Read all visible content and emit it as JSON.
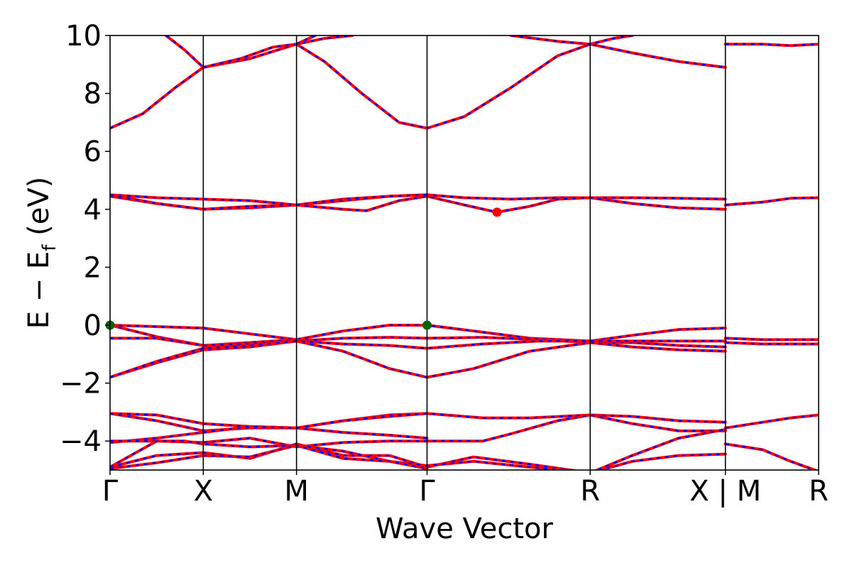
{
  "chart_data": {
    "type": "line",
    "xlabel": "Wave Vector",
    "ylabel_main": "E − E",
    "ylabel_sub": "f",
    "ylabel_unit": " (eV)",
    "ylim": [
      -5,
      10
    ],
    "yticks": [
      -4,
      -2,
      0,
      2,
      4,
      6,
      8,
      10
    ],
    "ytick_labels": [
      "−4",
      "−2",
      "0",
      "2",
      "4",
      "6",
      "8",
      "10"
    ],
    "xlim": [
      0,
      7.6
    ],
    "high_symmetry_points": [
      {
        "label": "Γ",
        "x": 0
      },
      {
        "label": "X",
        "x": 1
      },
      {
        "label": "M",
        "x": 2
      },
      {
        "label": "Γ",
        "x": 3.4
      },
      {
        "label": "R",
        "x": 5.15
      },
      {
        "label": "X | M",
        "x": 6.6
      },
      {
        "label": "R",
        "x": 7.6
      }
    ],
    "grid": false,
    "legend": "none",
    "colors": {
      "band_solid": "#ff0000",
      "band_dash": "#0000ff",
      "cbm_marker": "#ff0000",
      "vbm_marker": "#006400",
      "axes": "#000000"
    },
    "series": [
      {
        "values": [
          [
            0,
            6.8
          ],
          [
            0.35,
            7.3
          ],
          [
            0.7,
            8.2
          ],
          [
            1,
            8.9
          ],
          [
            1.5,
            9.2
          ],
          [
            2,
            9.7
          ],
          [
            2.3,
            9.1
          ],
          [
            2.7,
            8.0
          ],
          [
            3.1,
            7.0
          ],
          [
            3.4,
            6.8
          ],
          [
            3.8,
            7.2
          ],
          [
            4.3,
            8.2
          ],
          [
            4.8,
            9.3
          ],
          [
            5.15,
            9.7
          ],
          [
            5.6,
            9.4
          ],
          [
            6.1,
            9.1
          ],
          [
            6.6,
            8.9
          ]
        ]
      },
      {
        "values": [
          [
            0.6,
            10
          ],
          [
            0.8,
            9.5
          ],
          [
            1,
            8.9
          ]
        ]
      },
      {
        "values": [
          [
            1,
            8.9
          ],
          [
            1.4,
            9.2
          ],
          [
            1.75,
            9.6
          ],
          [
            2,
            9.7
          ],
          [
            2.3,
            9.9
          ],
          [
            2.6,
            10
          ]
        ]
      },
      {
        "values": [
          [
            2,
            9.7
          ],
          [
            2.2,
            10
          ]
        ]
      },
      {
        "values": [
          [
            4.3,
            10
          ],
          [
            4.8,
            9.8
          ],
          [
            5.15,
            9.7
          ],
          [
            5.4,
            9.9
          ],
          [
            5.6,
            10
          ]
        ]
      },
      {
        "values": [
          [
            6.6,
            9.7
          ],
          [
            7.0,
            9.7
          ],
          [
            7.3,
            9.65
          ],
          [
            7.6,
            9.7
          ]
        ]
      },
      {
        "values": [
          [
            0,
            4.5
          ],
          [
            0.5,
            4.4
          ],
          [
            1,
            4.35
          ],
          [
            1.5,
            4.3
          ],
          [
            2,
            4.15
          ],
          [
            2.5,
            4.3
          ],
          [
            3,
            4.45
          ],
          [
            3.4,
            4.5
          ],
          [
            3.8,
            4.4
          ],
          [
            4.3,
            4.35
          ],
          [
            4.8,
            4.4
          ],
          [
            5.15,
            4.4
          ],
          [
            5.6,
            4.4
          ],
          [
            6.1,
            4.38
          ],
          [
            6.6,
            4.35
          ]
        ]
      },
      {
        "values": [
          [
            0,
            4.45
          ],
          [
            0.5,
            4.2
          ],
          [
            1,
            4.0
          ],
          [
            1.5,
            4.05
          ],
          [
            2,
            4.15
          ],
          [
            2.5,
            4.0
          ],
          [
            2.75,
            3.95
          ],
          [
            3.1,
            4.3
          ],
          [
            3.4,
            4.45
          ],
          [
            3.8,
            4.15
          ],
          [
            4.15,
            3.9
          ],
          [
            4.5,
            4.1
          ],
          [
            4.8,
            4.35
          ],
          [
            5.15,
            4.4
          ],
          [
            5.6,
            4.2
          ],
          [
            6.1,
            4.05
          ],
          [
            6.6,
            4.0
          ]
        ]
      },
      {
        "values": [
          [
            0,
            4.5
          ],
          [
            0.5,
            4.2
          ],
          [
            1,
            4.0
          ],
          [
            1.5,
            4.1
          ],
          [
            2,
            4.15
          ],
          [
            2.5,
            4.35
          ],
          [
            3,
            4.45
          ],
          [
            3.4,
            4.5
          ]
        ]
      },
      {
        "values": [
          [
            6.6,
            4.15
          ],
          [
            7.0,
            4.25
          ],
          [
            7.3,
            4.38
          ],
          [
            7.6,
            4.4
          ]
        ]
      },
      {
        "values": [
          [
            0,
            0
          ],
          [
            0.5,
            -0.05
          ],
          [
            1,
            -0.1
          ],
          [
            1.5,
            -0.3
          ],
          [
            2,
            -0.5
          ],
          [
            2.5,
            -0.2
          ],
          [
            3,
            0.0
          ],
          [
            3.4,
            0
          ],
          [
            3.9,
            -0.2
          ],
          [
            4.5,
            -0.45
          ],
          [
            5.15,
            -0.55
          ],
          [
            5.6,
            -0.35
          ],
          [
            6.1,
            -0.15
          ],
          [
            6.6,
            -0.1
          ]
        ]
      },
      {
        "values": [
          [
            0,
            0
          ],
          [
            0.5,
            -0.4
          ],
          [
            1,
            -0.7
          ],
          [
            1.5,
            -0.6
          ],
          [
            2,
            -0.5
          ]
        ]
      },
      {
        "values": [
          [
            0,
            -0.45
          ],
          [
            0.5,
            -0.45
          ],
          [
            1,
            -0.7
          ],
          [
            1.5,
            -0.65
          ],
          [
            2,
            -0.55
          ],
          [
            2.5,
            -0.45
          ],
          [
            3,
            -0.42
          ],
          [
            3.4,
            -0.45
          ],
          [
            4,
            -0.42
          ],
          [
            4.6,
            -0.5
          ],
          [
            5.15,
            -0.6
          ],
          [
            5.6,
            -0.6
          ],
          [
            6.1,
            -0.7
          ],
          [
            6.6,
            -0.75
          ]
        ]
      },
      {
        "values": [
          [
            0,
            -1.8
          ],
          [
            0.5,
            -1.3
          ],
          [
            1,
            -0.85
          ],
          [
            1.5,
            -0.75
          ],
          [
            2,
            -0.55
          ],
          [
            2.5,
            -0.9
          ],
          [
            3,
            -1.5
          ],
          [
            3.4,
            -1.8
          ],
          [
            3.9,
            -1.5
          ],
          [
            4.5,
            -0.9
          ],
          [
            5.15,
            -0.6
          ],
          [
            5.6,
            -0.75
          ],
          [
            6.1,
            -0.85
          ],
          [
            6.6,
            -0.9
          ]
        ]
      },
      {
        "values": [
          [
            0,
            -1.8
          ],
          [
            0.5,
            -1.25
          ],
          [
            1,
            -0.8
          ],
          [
            1.5,
            -0.7
          ],
          [
            2,
            -0.55
          ],
          [
            2.5,
            -0.65
          ],
          [
            3,
            -0.7
          ],
          [
            3.4,
            -0.8
          ],
          [
            4,
            -0.65
          ],
          [
            4.6,
            -0.55
          ],
          [
            5.15,
            -0.55
          ],
          [
            6.6,
            -0.55
          ]
        ]
      },
      {
        "values": [
          [
            6.6,
            -0.45
          ],
          [
            7.0,
            -0.5
          ],
          [
            7.6,
            -0.5
          ]
        ]
      },
      {
        "values": [
          [
            6.6,
            -0.6
          ],
          [
            7.0,
            -0.65
          ],
          [
            7.6,
            -0.65
          ]
        ]
      },
      {
        "values": [
          [
            0,
            -3.05
          ],
          [
            0.5,
            -3.1
          ],
          [
            1,
            -3.4
          ],
          [
            1.5,
            -3.5
          ],
          [
            2,
            -3.55
          ],
          [
            2.5,
            -3.3
          ],
          [
            3,
            -3.1
          ],
          [
            3.4,
            -3.05
          ],
          [
            4,
            -3.2
          ],
          [
            4.5,
            -3.2
          ],
          [
            5.15,
            -3.1
          ],
          [
            5.6,
            -3.15
          ],
          [
            6.1,
            -3.3
          ],
          [
            6.6,
            -3.35
          ]
        ]
      },
      {
        "values": [
          [
            0,
            -3.05
          ],
          [
            0.5,
            -3.3
          ],
          [
            1,
            -3.65
          ],
          [
            1.5,
            -3.55
          ],
          [
            2,
            -3.55
          ],
          [
            2.5,
            -3.7
          ],
          [
            3,
            -3.8
          ],
          [
            3.4,
            -3.9
          ]
        ]
      },
      {
        "values": [
          [
            0,
            -4.05
          ],
          [
            0.5,
            -3.9
          ],
          [
            1,
            -3.7
          ],
          [
            1.5,
            -3.5
          ],
          [
            2,
            -3.55
          ],
          [
            2.5,
            -3.3
          ],
          [
            3,
            -3.15
          ],
          [
            3.4,
            -3.05
          ]
        ]
      },
      {
        "values": [
          [
            0,
            -4.0
          ],
          [
            0.5,
            -4.0
          ],
          [
            1,
            -4.05
          ],
          [
            1.5,
            -3.9
          ],
          [
            2,
            -4.2
          ],
          [
            2.5,
            -4.05
          ],
          [
            3,
            -4.0
          ],
          [
            3.4,
            -4.0
          ],
          [
            4,
            -4.0
          ],
          [
            4.3,
            -3.75
          ],
          [
            4.8,
            -3.3
          ],
          [
            5.15,
            -3.1
          ],
          [
            5.6,
            -3.4
          ],
          [
            6.1,
            -3.65
          ],
          [
            6.6,
            -3.65
          ]
        ]
      },
      {
        "values": [
          [
            0,
            -4.9
          ],
          [
            0.5,
            -4.5
          ],
          [
            1,
            -4.4
          ],
          [
            1.5,
            -4.6
          ],
          [
            2,
            -4.1
          ],
          [
            2.5,
            -4.5
          ],
          [
            3,
            -4.5
          ],
          [
            3.4,
            -4.9
          ],
          [
            3.9,
            -4.55
          ],
          [
            4.5,
            -4.8
          ],
          [
            5.15,
            -5.1
          ]
        ]
      },
      {
        "values": [
          [
            0,
            -4.9
          ],
          [
            0.5,
            -4.0
          ],
          [
            0.8,
            -4.0
          ],
          [
            1,
            -4.1
          ],
          [
            1.5,
            -4.2
          ],
          [
            2,
            -4.15
          ],
          [
            2.5,
            -4.35
          ],
          [
            3,
            -4.7
          ],
          [
            3.4,
            -4.85
          ],
          [
            3.9,
            -4.7
          ],
          [
            4.5,
            -4.9
          ],
          [
            5.15,
            -5.1
          ]
        ]
      },
      {
        "values": [
          [
            0,
            -4.95
          ],
          [
            0.5,
            -4.75
          ],
          [
            1,
            -4.5
          ],
          [
            1.5,
            -4.55
          ],
          [
            2,
            -4.15
          ],
          [
            2.5,
            -4.6
          ],
          [
            3,
            -4.7
          ],
          [
            3.4,
            -4.95
          ]
        ]
      },
      {
        "values": [
          [
            5.15,
            -5.1
          ],
          [
            5.6,
            -4.7
          ],
          [
            6.1,
            -4.5
          ],
          [
            6.6,
            -4.45
          ]
        ]
      },
      {
        "values": [
          [
            5.15,
            -5.1
          ],
          [
            5.6,
            -4.5
          ],
          [
            6.1,
            -3.9
          ],
          [
            6.6,
            -3.6
          ]
        ]
      },
      {
        "values": [
          [
            6.6,
            -3.55
          ],
          [
            7.0,
            -3.35
          ],
          [
            7.3,
            -3.2
          ],
          [
            7.6,
            -3.1
          ]
        ]
      },
      {
        "values": [
          [
            6.6,
            -4.1
          ],
          [
            7.0,
            -4.3
          ],
          [
            7.3,
            -4.7
          ],
          [
            7.6,
            -5.05
          ]
        ]
      }
    ],
    "markers": [
      {
        "kind": "cbm",
        "x": 4.15,
        "y": 3.9
      },
      {
        "kind": "vbm",
        "x": 0,
        "y": 0
      },
      {
        "kind": "vbm",
        "x": 3.4,
        "y": 0
      }
    ]
  }
}
